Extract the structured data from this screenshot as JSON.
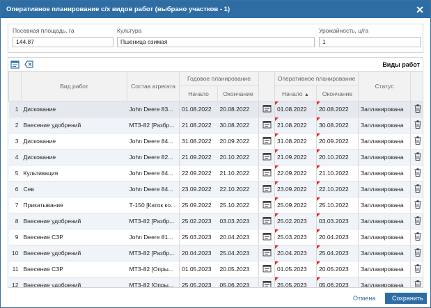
{
  "dialog": {
    "title": "Оперативное планирование с/х видов работ (выбрано участков - 1)",
    "close_glyph": "✕"
  },
  "fields": {
    "area": {
      "label": "Посевная площадь, га",
      "value": "144.87"
    },
    "culture": {
      "label": "Культура",
      "value": "Пшеница озимая"
    },
    "yield": {
      "label": "Урожайность, ц/га",
      "value": "1"
    }
  },
  "panel": {
    "title": "Виды работ",
    "toolbar_icons": [
      "calendar-add-icon",
      "clear-icon"
    ]
  },
  "table": {
    "headers": {
      "work_type": "Вид работ",
      "aggregate": "Состав агрегата",
      "annual": "Годовое планирование",
      "operational": "Оперативное планирование",
      "start": "Начало",
      "end": "Окончание",
      "status": "Статус"
    },
    "sort_glyph": "▲",
    "rows": [
      {
        "n": "1",
        "work": "Дискование",
        "agg": "John Deere 83...",
        "ys": "01.08.2022",
        "ye": "20.08.2022",
        "os": "01.08.2022",
        "oe": "20.08.2022",
        "status": "Запланирована"
      },
      {
        "n": "2",
        "work": "Внесение удобрений",
        "agg": "МТЗ-82 [Разбр...",
        "ys": "21.08.2022",
        "ye": "30.08.2022",
        "os": "21.08.2022",
        "oe": "30.08.2022",
        "status": "Запланирована"
      },
      {
        "n": "3",
        "work": "Дискование",
        "agg": "John Deere 84...",
        "ys": "31.08.2022",
        "ye": "20.09.2022",
        "os": "31.08.2022",
        "oe": "20.09.2022",
        "status": "Запланирована"
      },
      {
        "n": "4",
        "work": "Дискование",
        "agg": "John Deere 82...",
        "ys": "21.09.2022",
        "ye": "20.10.2022",
        "os": "21.09.2022",
        "oe": "20.10.2022",
        "status": "Запланирована"
      },
      {
        "n": "5",
        "work": "Культивация",
        "agg": "John Deere 84...",
        "ys": "22.09.2022",
        "ye": "21.10.2022",
        "os": "22.09.2022",
        "oe": "21.10.2022",
        "status": "Запланирована"
      },
      {
        "n": "6",
        "work": "Сев",
        "agg": "John Deere 84...",
        "ys": "23.09.2022",
        "ye": "22.10.2022",
        "os": "23.09.2022",
        "oe": "22.10.2022",
        "status": "Запланирована"
      },
      {
        "n": "7",
        "work": "Прикатывание",
        "agg": "Т-150 [Каток ко...",
        "ys": "25.09.2022",
        "ye": "25.10.2022",
        "os": "25.09.2022",
        "oe": "25.10.2022",
        "status": "Запланирована"
      },
      {
        "n": "8",
        "work": "Внесение удобрений",
        "agg": "МТЗ-82 [Разбр...",
        "ys": "25.02.2023",
        "ye": "03.03.2023",
        "os": "25.02.2023",
        "oe": "03.03.2023",
        "status": "Запланирована"
      },
      {
        "n": "9",
        "work": "Внесение СЗР",
        "agg": "John Deere 81...",
        "ys": "25.03.2023",
        "ye": "20.04.2023",
        "os": "25.03.2023",
        "oe": "20.04.2023",
        "status": "Запланирована"
      },
      {
        "n": "10",
        "work": "Внесение удобрений",
        "agg": "МТЗ-82 [Разбр...",
        "ys": "20.04.2023",
        "ye": "25.04.2023",
        "os": "20.04.2023",
        "oe": "25.04.2023",
        "status": "Запланирована"
      },
      {
        "n": "11",
        "work": "Внесение СЗР",
        "agg": "МТЗ-82 [Опры...",
        "ys": "01.05.2023",
        "ye": "20.05.2023",
        "os": "01.05.2023",
        "oe": "20.05.2023",
        "status": "Запланирована"
      },
      {
        "n": "12",
        "work": "Внесение удобрений",
        "agg": "МТЗ-82 [Опры...",
        "ys": "25.05.2023",
        "ye": "05.06.2023",
        "os": "25.05.2023",
        "oe": "05.06.2023",
        "status": "Запланирована"
      }
    ]
  },
  "row_icons": [
    "calendar-edit-icon",
    "trash-icon"
  ],
  "footer": {
    "cancel_label": "Отмена",
    "save_label": "Сохранить"
  },
  "colors": {
    "accent": "#2e6da4",
    "flag": "#e42222",
    "alt_row": "#f0f4f9"
  }
}
